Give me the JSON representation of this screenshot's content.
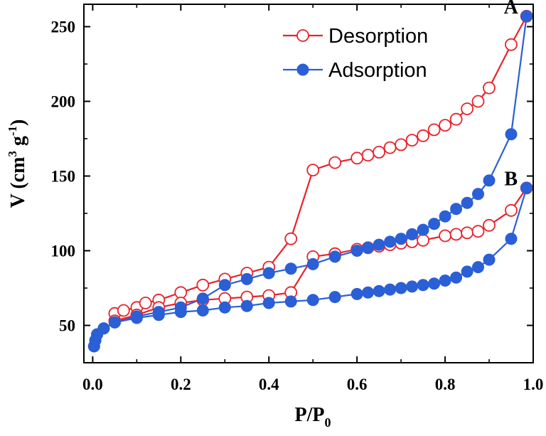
{
  "chart_data": {
    "type": "line",
    "xlabel": "P/P",
    "xlabel_sub": "0",
    "ylabel": "V (cm",
    "ylabel_sup1": "3",
    "ylabel_mid": " g",
    "ylabel_sup2": "-1",
    "ylabel_end": ")",
    "xlim": [
      -0.02,
      1.0
    ],
    "ylim": [
      25,
      265
    ],
    "xticks": [
      0.0,
      0.2,
      0.4,
      0.6,
      0.8,
      1.0
    ],
    "xtick_labels": [
      "0.0",
      "0.2",
      "0.4",
      "0.6",
      "0.8",
      "1.0"
    ],
    "yticks": [
      50,
      100,
      150,
      200,
      250
    ],
    "ytick_labels": [
      "50",
      "100",
      "150",
      "200",
      "250"
    ],
    "legend_position": "top-right",
    "point_labels": [
      {
        "text": "A",
        "x": 0.985,
        "y": 257
      },
      {
        "text": "B",
        "x": 0.985,
        "y": 142
      }
    ],
    "series": [
      {
        "name": "Desorption",
        "marker": "open-circle",
        "color": "#e8222a",
        "curve": "A",
        "x": [
          0.05,
          0.07,
          0.1,
          0.12,
          0.15,
          0.2,
          0.25,
          0.3,
          0.35,
          0.4,
          0.45,
          0.5,
          0.55,
          0.6,
          0.625,
          0.65,
          0.675,
          0.7,
          0.725,
          0.75,
          0.775,
          0.8,
          0.825,
          0.85,
          0.875,
          0.9,
          0.95,
          0.985
        ],
        "y": [
          58,
          60,
          62,
          65,
          67,
          72,
          77,
          81,
          85,
          89,
          108,
          154,
          159,
          162,
          164,
          166,
          169,
          171,
          174,
          177,
          181,
          184,
          188,
          195,
          200,
          209,
          238,
          257
        ]
      },
      {
        "name": "Adsorption",
        "marker": "filled-circle",
        "color": "#2a5fd6",
        "curve": "A",
        "x": [
          0.003,
          0.006,
          0.01,
          0.025,
          0.05,
          0.1,
          0.15,
          0.2,
          0.25,
          0.3,
          0.35,
          0.4,
          0.45,
          0.5,
          0.55,
          0.6,
          0.625,
          0.65,
          0.675,
          0.7,
          0.725,
          0.75,
          0.775,
          0.8,
          0.825,
          0.85,
          0.875,
          0.9,
          0.95,
          0.985
        ],
        "y": [
          36,
          40,
          44,
          48,
          52,
          56,
          59,
          62,
          68,
          77,
          81,
          85,
          88,
          91,
          96,
          100,
          102,
          104,
          106,
          108,
          111,
          114,
          118,
          123,
          128,
          132,
          138,
          147,
          178,
          257
        ]
      },
      {
        "name": "",
        "marker": "open-circle",
        "color": "#e8222a",
        "curve": "B",
        "x": [
          0.05,
          0.1,
          0.15,
          0.2,
          0.25,
          0.3,
          0.35,
          0.4,
          0.45,
          0.5,
          0.55,
          0.6,
          0.625,
          0.65,
          0.675,
          0.7,
          0.725,
          0.75,
          0.8,
          0.825,
          0.85,
          0.875,
          0.9,
          0.95,
          0.985
        ],
        "y": [
          53,
          57,
          62,
          65,
          67,
          68,
          69,
          70,
          72,
          96,
          98,
          101,
          102,
          103,
          104,
          105,
          106,
          107,
          110,
          111,
          112,
          113,
          117,
          127,
          142
        ]
      },
      {
        "name": "",
        "marker": "filled-circle",
        "color": "#2a5fd6",
        "curve": "B",
        "x": [
          0.003,
          0.006,
          0.01,
          0.025,
          0.05,
          0.1,
          0.15,
          0.2,
          0.25,
          0.3,
          0.35,
          0.4,
          0.45,
          0.5,
          0.55,
          0.6,
          0.625,
          0.65,
          0.675,
          0.7,
          0.725,
          0.75,
          0.775,
          0.8,
          0.825,
          0.85,
          0.875,
          0.9,
          0.95,
          0.985
        ],
        "y": [
          36,
          40,
          44,
          48,
          52,
          55,
          57,
          59,
          60,
          62,
          63,
          65,
          66,
          67,
          69,
          71,
          72,
          73,
          74,
          75,
          76,
          77,
          78,
          80,
          82,
          86,
          89,
          94,
          108,
          142
        ]
      }
    ]
  }
}
